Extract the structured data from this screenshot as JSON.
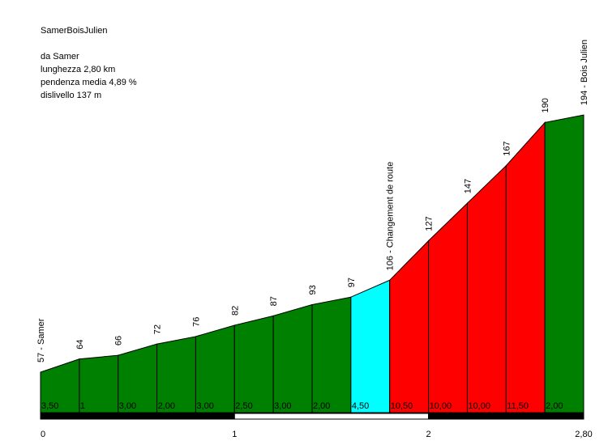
{
  "info": {
    "title": "SamerBoisJulien",
    "from": "da Samer",
    "length": "lunghezza 2,80 km",
    "avg_grade": "pendenza media 4,89 %",
    "elevation_gain": "dislivello 137 m"
  },
  "chart_data": {
    "type": "area",
    "title": "SamerBoisJulien",
    "x_unit": "km",
    "xlim": [
      0,
      2.8
    ],
    "x_ticks": [
      {
        "value": 0,
        "label": "0"
      },
      {
        "value": 1,
        "label": "1"
      },
      {
        "value": 2,
        "label": "2"
      },
      {
        "value": 2.8,
        "label": "2,80"
      }
    ],
    "points": [
      {
        "x": 0.0,
        "y": 57,
        "label": "57 - Samer"
      },
      {
        "x": 0.2,
        "y": 64,
        "label": "64"
      },
      {
        "x": 0.4,
        "y": 66,
        "label": "66"
      },
      {
        "x": 0.6,
        "y": 72,
        "label": "72"
      },
      {
        "x": 0.8,
        "y": 76,
        "label": "76"
      },
      {
        "x": 1.0,
        "y": 82,
        "label": "82"
      },
      {
        "x": 1.2,
        "y": 87,
        "label": "87"
      },
      {
        "x": 1.4,
        "y": 93,
        "label": "93"
      },
      {
        "x": 1.6,
        "y": 97,
        "label": "97"
      },
      {
        "x": 1.8,
        "y": 106,
        "label": "106 - Changement de route"
      },
      {
        "x": 2.0,
        "y": 127,
        "label": "127"
      },
      {
        "x": 2.2,
        "y": 147,
        "label": "147"
      },
      {
        "x": 2.4,
        "y": 167,
        "label": "167"
      },
      {
        "x": 2.6,
        "y": 190,
        "label": "190"
      },
      {
        "x": 2.8,
        "y": 194,
        "label": "194 - Bois Julien"
      }
    ],
    "segments": [
      {
        "grade": "3,50",
        "color": "#008000"
      },
      {
        "grade": "1",
        "color": "#008000"
      },
      {
        "grade": "3,00",
        "color": "#008000"
      },
      {
        "grade": "2,00",
        "color": "#008000"
      },
      {
        "grade": "3,00",
        "color": "#008000"
      },
      {
        "grade": "2,50",
        "color": "#008000"
      },
      {
        "grade": "3,00",
        "color": "#008000"
      },
      {
        "grade": "2,00",
        "color": "#008000"
      },
      {
        "grade": "4,50",
        "color": "#00ffff"
      },
      {
        "grade": "10,50",
        "color": "#ff0000"
      },
      {
        "grade": "10,00",
        "color": "#ff0000"
      },
      {
        "grade": "10,00",
        "color": "#ff0000"
      },
      {
        "grade": "11,50",
        "color": "#ff0000"
      },
      {
        "grade": "2,00",
        "color": "#008000"
      }
    ]
  }
}
